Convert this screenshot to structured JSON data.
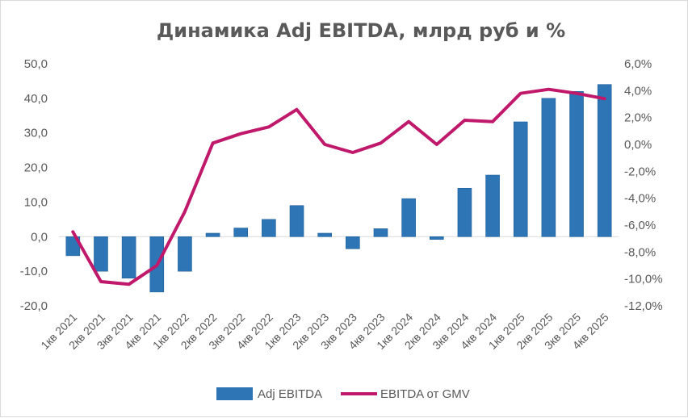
{
  "chart_data": {
    "type": "bar+line",
    "title": "Динамика Adj EBITDA, млрд руб и %",
    "categories": [
      "1кв 2021",
      "2кв 2021",
      "3кв 2021",
      "4кв 2021",
      "1кв 2022",
      "2кв 2022",
      "3кв 2022",
      "4кв 2022",
      "1кв 2023",
      "2кв 2023",
      "3кв 2023",
      "4кв 2023",
      "1кв 2024",
      "2кв 2024",
      "3кв 2024",
      "4кв 2024",
      "1кв 2025",
      "2кв 2025",
      "3кв 2025",
      "4кв 2025"
    ],
    "series": [
      {
        "name": "Adj EBITDA",
        "type": "bar",
        "axis": "left",
        "color": "#2e75b6",
        "values": [
          -5.5,
          -10.0,
          -12.0,
          -16.0,
          -10.0,
          1.0,
          2.5,
          5.0,
          9.0,
          1.0,
          -3.5,
          2.3,
          11.0,
          -0.8,
          14.0,
          17.8,
          33.2,
          40.0,
          42.0,
          44.0
        ]
      },
      {
        "name": "EBITDA от GMV",
        "type": "line",
        "axis": "right",
        "color": "#c0186a",
        "values": [
          -6.5,
          -10.2,
          -10.4,
          -9.0,
          -5.0,
          0.1,
          0.8,
          1.3,
          2.6,
          0.0,
          -0.6,
          0.1,
          1.7,
          0.0,
          1.8,
          1.7,
          3.8,
          4.1,
          3.8,
          3.4
        ]
      }
    ],
    "left_axis": {
      "min": -20,
      "max": 50,
      "step": 10,
      "ticks": [
        "50,0",
        "40,0",
        "30,0",
        "20,0",
        "10,0",
        "0,0",
        "-10,0",
        "-20,0"
      ]
    },
    "right_axis": {
      "min": -12,
      "max": 6,
      "step": 2,
      "ticks": [
        "6,0%",
        "4,0%",
        "2,0%",
        "0,0%",
        "-2,0%",
        "-4,0%",
        "-6,0%",
        "-8,0%",
        "-10,0%",
        "-12,0%"
      ]
    },
    "legend": [
      {
        "label": "Adj EBITDA",
        "kind": "bar",
        "color": "#2e75b6"
      },
      {
        "label": "EBITDA от GMV",
        "kind": "line",
        "color": "#c0186a"
      }
    ],
    "legend_position": "bottom",
    "grid": false
  }
}
